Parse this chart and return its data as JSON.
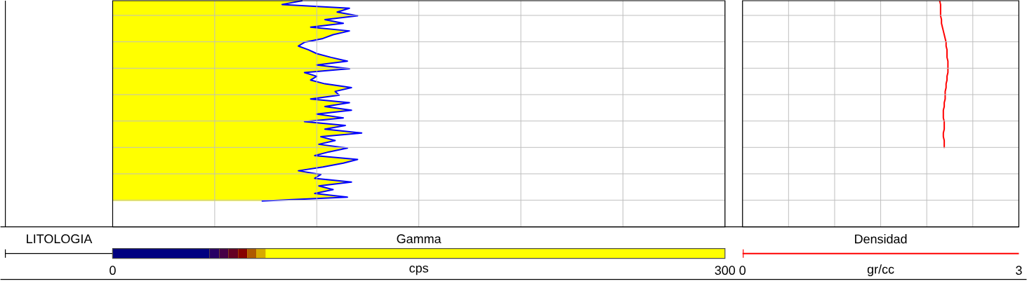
{
  "chart_data": [
    {
      "type": "other",
      "title": "LITOLOGIA"
    },
    {
      "type": "area",
      "orientation": "horizontal",
      "title": "Gamma",
      "xlabel": "cps",
      "grid": true,
      "tick_labels": "x",
      "categories": [
        null,
        null,
        null,
        null,
        null,
        null,
        null,
        null,
        null,
        null,
        null,
        null,
        null,
        null,
        null,
        null,
        null,
        null,
        null,
        null,
        null,
        null,
        null,
        null,
        null,
        null,
        null,
        null,
        null,
        null,
        null,
        null,
        null,
        null,
        null,
        null,
        null,
        null,
        null,
        null,
        null,
        null,
        null,
        null,
        null,
        null,
        null,
        null,
        null,
        null,
        null,
        null,
        null,
        null
      ],
      "series": [
        {
          "type": "area",
          "color": "#ffff00",
          "values": [
            93,
            83,
            116,
            110,
            120,
            104,
            113,
            97,
            116,
            108,
            103,
            94,
            91,
            96,
            100,
            107,
            115,
            100,
            116,
            94,
            100,
            97,
            104,
            117,
            109,
            111,
            97,
            116,
            104,
            117,
            100,
            113,
            94,
            114,
            104,
            122,
            102,
            109,
            101,
            115,
            106,
            99,
            120,
            113,
            103,
            91,
            102,
            99,
            117,
            101,
            108,
            99,
            115,
            73
          ]
        },
        {
          "type": "line",
          "color": "#0000ff",
          "values": [
            93,
            83,
            116,
            110,
            120,
            104,
            113,
            97,
            116,
            108,
            103,
            94,
            91,
            96,
            100,
            107,
            115,
            100,
            116,
            94,
            100,
            97,
            104,
            117,
            109,
            111,
            97,
            116,
            104,
            117,
            100,
            113,
            94,
            114,
            104,
            122,
            102,
            109,
            101,
            115,
            106,
            99,
            120,
            113,
            103,
            91,
            102,
            99,
            117,
            101,
            108,
            99,
            115,
            73
          ]
        }
      ],
      "xlim": [
        0,
        300
      ],
      "xticks": [
        0,
        {
          "value": 50,
          "label": null
        },
        {
          "value": 100,
          "label": null
        },
        {
          "value": 150,
          "label": null
        },
        {
          "value": 200,
          "label": null
        },
        {
          "value": 250,
          "label": null
        },
        300
      ]
    },
    {
      "type": "line",
      "orientation": "horizontal",
      "title": "Densidad",
      "xlabel": "gr/cc",
      "grid": true,
      "tick_labels": "x",
      "categories": [
        null,
        null,
        null,
        null,
        null,
        null,
        null,
        null,
        null,
        null,
        null,
        null,
        null,
        null,
        null,
        null,
        null,
        null,
        null,
        null,
        null,
        null,
        null,
        null,
        null,
        null,
        null,
        null,
        null,
        null,
        null,
        null,
        null,
        null,
        null,
        null,
        null,
        null,
        null,
        null,
        null,
        null,
        null,
        null,
        null,
        null,
        null,
        null,
        null,
        null,
        null,
        null,
        null,
        null
      ],
      "series": [
        {
          "color": "#ff0000",
          "values": [
            2.14,
            2.15,
            2.15,
            2.15,
            2.15,
            2.16,
            2.16,
            2.17,
            2.18,
            2.19,
            2.2,
            2.21,
            2.21,
            2.22,
            2.22,
            2.22,
            2.23,
            2.23,
            2.23,
            2.23,
            2.22,
            2.22,
            2.21,
            2.21,
            2.2,
            2.2,
            2.2,
            2.19,
            2.19,
            2.18,
            2.18,
            2.18,
            2.19,
            2.19,
            2.19,
            2.18,
            2.18,
            2.19,
            2.19,
            2.19,
            null,
            null,
            null,
            null,
            null,
            null,
            null,
            null,
            null,
            null,
            null,
            null,
            null,
            null
          ]
        }
      ],
      "xlim": [
        0,
        3
      ],
      "xticks": [
        0,
        {
          "value": 0.5,
          "label": null
        },
        {
          "value": 1,
          "label": null
        },
        {
          "value": 1.5,
          "label": null
        },
        {
          "value": 2,
          "label": null
        },
        {
          "value": 2.5,
          "label": null
        },
        3
      ]
    }
  ]
}
